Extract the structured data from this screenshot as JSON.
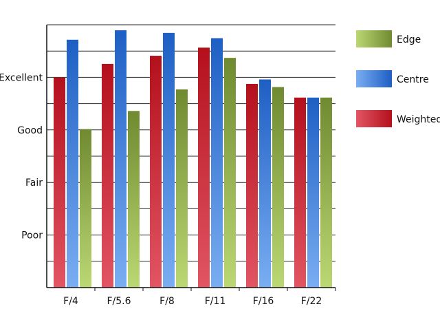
{
  "chart_data": {
    "type": "bar",
    "categories": [
      "F/4",
      "F/5.6",
      "F/8",
      "F/11",
      "F/16",
      "F/22"
    ],
    "series": [
      {
        "name": "Weighted",
        "values": [
          7.99,
          8.51,
          8.82,
          9.13,
          7.75,
          7.23
        ],
        "colors": [
          "#e25563",
          "#b3101c"
        ]
      },
      {
        "name": "Centre",
        "values": [
          9.43,
          9.79,
          9.69,
          9.49,
          7.92,
          7.23
        ],
        "colors": [
          "#7aaef2",
          "#1e5fc4"
        ]
      },
      {
        "name": "Edge",
        "values": [
          6.03,
          6.72,
          7.54,
          8.74,
          7.63,
          7.23
        ],
        "colors": [
          "#bcd874",
          "#6f8a30"
        ]
      }
    ],
    "legend_order": [
      "Edge",
      "Centre",
      "Weighted"
    ],
    "legend_position": "right",
    "y_tick_labels": [
      {
        "label": "Poor",
        "value": 2
      },
      {
        "label": "Fair",
        "value": 4
      },
      {
        "label": "Good",
        "value": 6
      },
      {
        "label": "Excellent",
        "value": 8
      }
    ],
    "ylim": [
      0,
      10
    ],
    "gridlines": "horizontal",
    "title": "",
    "xlabel": "",
    "ylabel": ""
  }
}
